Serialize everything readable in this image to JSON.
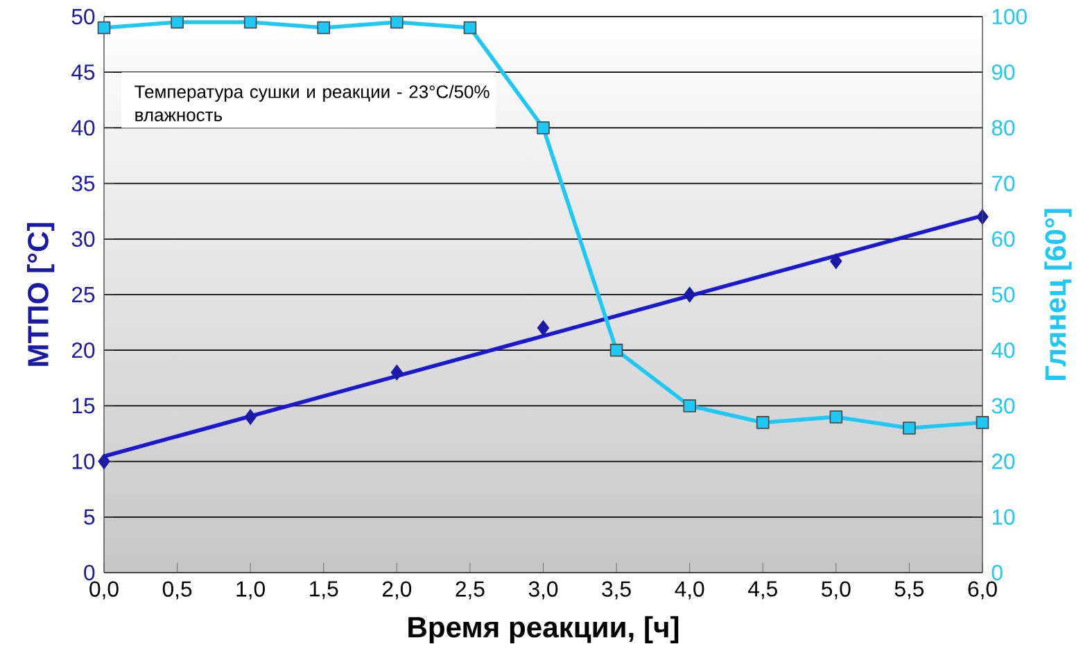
{
  "chart_data": {
    "type": "line",
    "xlabel": "Время реакции, [ч]",
    "ylabel": "МТПО [°C]",
    "y2label": "Глянец [60°]",
    "annotations": [
      "Температура сушки и реакции - 23°C/50% влажность"
    ],
    "xlim": [
      0,
      6
    ],
    "xticks": [
      {
        "value": 0,
        "label": "0,0"
      },
      {
        "value": 0.5,
        "label": "0,5"
      },
      {
        "value": 1,
        "label": "1,0"
      },
      {
        "value": 1.5,
        "label": "1,5"
      },
      {
        "value": 2,
        "label": "2,0"
      },
      {
        "value": 2.5,
        "label": "2,5"
      },
      {
        "value": 3,
        "label": "3,0"
      },
      {
        "value": 3.5,
        "label": "3,5"
      },
      {
        "value": 4,
        "label": "4,0"
      },
      {
        "value": 4.5,
        "label": "4,5"
      },
      {
        "value": 5,
        "label": "5,0"
      },
      {
        "value": 5.5,
        "label": "5,5"
      },
      {
        "value": 6,
        "label": "6,0"
      }
    ],
    "ylim": [
      0,
      50
    ],
    "yticks": [
      0,
      5,
      10,
      15,
      20,
      25,
      30,
      35,
      40,
      45,
      50
    ],
    "y2lim": [
      0,
      100
    ],
    "y2ticks": [
      0,
      10,
      20,
      30,
      40,
      50,
      60,
      70,
      80,
      90,
      100
    ],
    "grid": "y",
    "series": [
      {
        "type": "scatter",
        "color": "#1a1aa6",
        "marker": "diamond",
        "x": [
          0,
          1,
          2,
          3,
          4,
          5,
          6
        ],
        "values": [
          10,
          14,
          18,
          22,
          25,
          28,
          32
        ]
      },
      {
        "color": "#1a1acc",
        "marker": "none",
        "x": [
          0,
          6
        ],
        "values": [
          10.46,
          32.1
        ]
      },
      {
        "axis": "y2",
        "color": "#1ec8f5",
        "marker": "square",
        "x": [
          0,
          0.5,
          1,
          1.5,
          2,
          2.5,
          3,
          3.5,
          4,
          4.5,
          5,
          5.5,
          6
        ],
        "values": [
          98,
          99,
          99,
          98,
          99,
          98,
          80,
          40,
          30,
          27,
          28,
          26,
          27
        ]
      }
    ]
  }
}
